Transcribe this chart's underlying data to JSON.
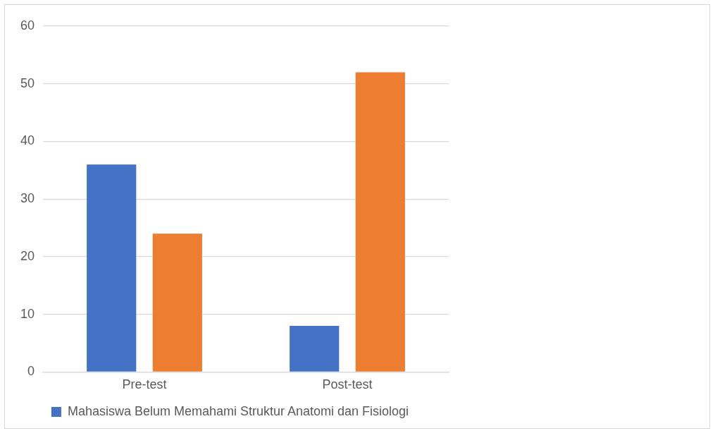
{
  "chart_data": {
    "type": "bar",
    "categories": [
      "Pre-test",
      "Post-test"
    ],
    "series": [
      {
        "name": "Mahasiswa Belum Memahami Struktur Anatomi dan Fisiologi",
        "color": "#4472c4",
        "values": [
          36,
          8
        ]
      },
      {
        "color": "#ed7d31",
        "values": [
          24,
          52
        ]
      }
    ],
    "ylim": [
      0,
      60
    ],
    "yticks": [
      0,
      10,
      20,
      30,
      40,
      50,
      60
    ],
    "grid": "y",
    "legend": "bottom"
  }
}
